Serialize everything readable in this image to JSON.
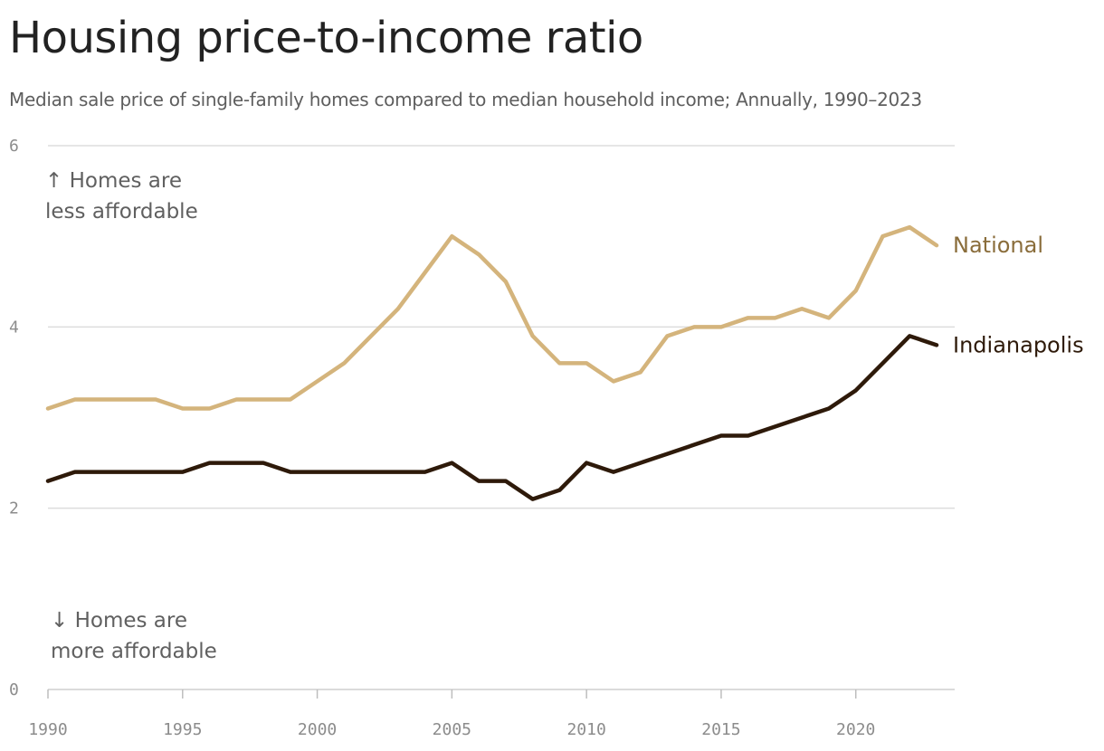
{
  "header": {
    "title": "Housing price-to-income ratio",
    "subtitle": "Median sale price of single-family homes compared to median household income; Annually, 1990–2023"
  },
  "annotations": {
    "upper_line1": "↑ Homes are",
    "upper_line2": "less affordable",
    "lower_line1": "↓ Homes are",
    "lower_line2": "more affordable"
  },
  "colors": {
    "national": "#d4b47c",
    "indianapolis": "#2e1a0a",
    "national_label": "#8a6d3b",
    "grid": "#dddddd"
  },
  "chart_data": {
    "type": "line",
    "title": "Housing price-to-income ratio",
    "subtitle": "Median sale price of single-family homes compared to median household income; Annually, 1990–2023",
    "xlabel": "",
    "ylabel": "",
    "xlim": [
      1990,
      2023
    ],
    "ylim": [
      0,
      6
    ],
    "x_ticks": [
      1990,
      1995,
      2000,
      2005,
      2010,
      2015,
      2020
    ],
    "y_ticks": [
      0,
      2,
      4,
      6
    ],
    "grid": "horizontal",
    "x": [
      1990,
      1991,
      1992,
      1993,
      1994,
      1995,
      1996,
      1997,
      1998,
      1999,
      2000,
      2001,
      2002,
      2003,
      2004,
      2005,
      2006,
      2007,
      2008,
      2009,
      2010,
      2011,
      2012,
      2013,
      2014,
      2015,
      2016,
      2017,
      2018,
      2019,
      2020,
      2021,
      2022,
      2023
    ],
    "series": [
      {
        "name": "National",
        "values": [
          3.1,
          3.2,
          3.2,
          3.2,
          3.2,
          3.1,
          3.1,
          3.2,
          3.2,
          3.2,
          3.4,
          3.6,
          3.9,
          4.2,
          4.6,
          5.0,
          4.8,
          4.5,
          3.9,
          3.6,
          3.6,
          3.4,
          3.5,
          3.9,
          4.0,
          4.0,
          4.1,
          4.1,
          4.2,
          4.1,
          4.4,
          5.0,
          5.1,
          4.9
        ]
      },
      {
        "name": "Indianapolis",
        "values": [
          2.3,
          2.4,
          2.4,
          2.4,
          2.4,
          2.4,
          2.5,
          2.5,
          2.5,
          2.4,
          2.4,
          2.4,
          2.4,
          2.4,
          2.4,
          2.5,
          2.3,
          2.3,
          2.1,
          2.2,
          2.5,
          2.4,
          2.5,
          2.6,
          2.7,
          2.8,
          2.8,
          2.9,
          3.0,
          3.1,
          3.3,
          3.6,
          3.9,
          3.8
        ]
      }
    ]
  }
}
